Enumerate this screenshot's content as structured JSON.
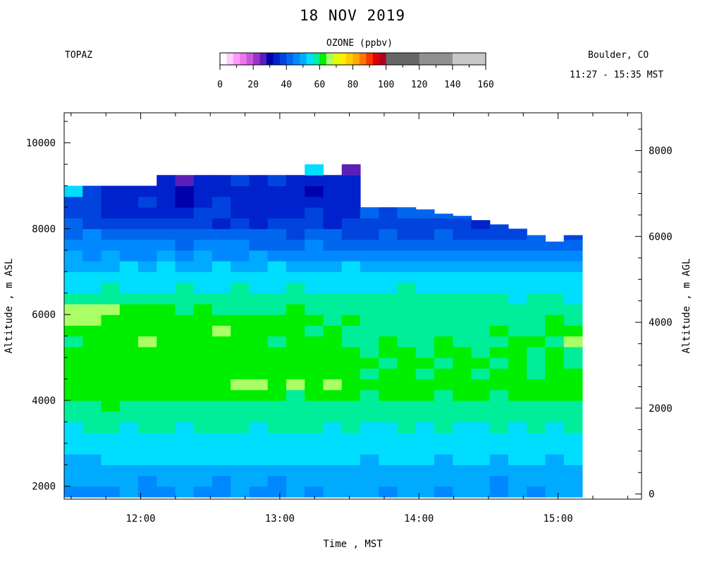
{
  "header": {
    "title": "18 NOV 2019",
    "site": "TOPAZ",
    "location": "Boulder, CO",
    "time_range": "11:27 - 15:35 MST"
  },
  "colorbar": {
    "title": "OZONE (ppbv)",
    "ticks": [
      0,
      20,
      40,
      60,
      80,
      100,
      120,
      140,
      160
    ],
    "segments": [
      {
        "from": 0,
        "to": 4,
        "color": "#ffffff"
      },
      {
        "from": 4,
        "to": 8,
        "color": "#ffccff"
      },
      {
        "from": 8,
        "to": 12,
        "color": "#ff99ff"
      },
      {
        "from": 12,
        "to": 16,
        "color": "#ee77ee"
      },
      {
        "from": 16,
        "to": 20,
        "color": "#cc55dd"
      },
      {
        "from": 20,
        "to": 24,
        "color": "#9933cc"
      },
      {
        "from": 24,
        "to": 28,
        "color": "#5a1fb8"
      },
      {
        "from": 28,
        "to": 32,
        "color": "#0000aa"
      },
      {
        "from": 32,
        "to": 36,
        "color": "#0022cc"
      },
      {
        "from": 36,
        "to": 40,
        "color": "#0044dd"
      },
      {
        "from": 40,
        "to": 44,
        "color": "#0066ee"
      },
      {
        "from": 44,
        "to": 48,
        "color": "#0088ff"
      },
      {
        "from": 48,
        "to": 52,
        "color": "#00aaff"
      },
      {
        "from": 52,
        "to": 56,
        "color": "#00ddff"
      },
      {
        "from": 56,
        "to": 60,
        "color": "#00ee99"
      },
      {
        "from": 60,
        "to": 64,
        "color": "#00ee00"
      },
      {
        "from": 64,
        "to": 68,
        "color": "#aaff66"
      },
      {
        "from": 68,
        "to": 72,
        "color": "#ddff00"
      },
      {
        "from": 72,
        "to": 76,
        "color": "#ffee00"
      },
      {
        "from": 76,
        "to": 80,
        "color": "#ffcc00"
      },
      {
        "from": 80,
        "to": 84,
        "color": "#ffaa00"
      },
      {
        "from": 84,
        "to": 88,
        "color": "#ff7700"
      },
      {
        "from": 88,
        "to": 92,
        "color": "#ff3300"
      },
      {
        "from": 92,
        "to": 96,
        "color": "#dd0000"
      },
      {
        "from": 96,
        "to": 100,
        "color": "#aa0022"
      },
      {
        "from": 100,
        "to": 120,
        "color": "#666666"
      },
      {
        "from": 120,
        "to": 140,
        "color": "#909090"
      },
      {
        "from": 140,
        "to": 160,
        "color": "#c8c8c8"
      }
    ]
  },
  "chart_data": {
    "type": "heatmap",
    "title": "18 NOV 2019",
    "xlabel": "Time , MST",
    "ylabel": "Altitude , m ASL",
    "y2label": "Altitude , m AGL",
    "x_ticks": [
      {
        "value": 12,
        "label": "12:00"
      },
      {
        "value": 13,
        "label": "13:00"
      },
      {
        "value": 14,
        "label": "14:00"
      },
      {
        "value": 15,
        "label": "15:00"
      }
    ],
    "xlim": [
      11.45,
      15.6
    ],
    "y_ticks": [
      2000,
      4000,
      6000,
      8000,
      10000
    ],
    "ylim": [
      1700,
      10700
    ],
    "y2_ticks": [
      0,
      2000,
      4000,
      6000,
      8000
    ],
    "y2_offset": 1820,
    "grid": false,
    "time_start_hours": 11.45,
    "time_step_hours": 0.133,
    "alt_base_m": 1750,
    "alt_step_m": 250,
    "column_tops_m": [
      9600,
      9550,
      9650,
      9600,
      9650,
      9700,
      9750,
      9650,
      9700,
      9850,
      9800,
      9900,
      9950,
      10000,
      9950,
      10100,
      8700,
      8600,
      8600,
      8450,
      8350,
      8300,
      8200,
      8100,
      8000,
      7850,
      7700,
      7850
    ],
    "ozone_ppbv": [
      [
        46,
        47,
        46,
        48,
        46,
        47,
        48,
        47,
        46,
        48,
        47,
        46,
        48,
        47,
        48,
        49,
        48,
        47,
        48,
        49,
        47,
        48,
        49,
        47,
        48,
        47,
        49,
        48
      ],
      [
        48,
        50,
        49,
        48,
        47,
        49,
        50,
        48,
        47,
        49,
        48,
        47,
        50,
        49,
        48,
        50,
        49,
        48,
        50,
        49,
        48,
        49,
        48,
        47,
        49,
        50,
        48,
        49
      ],
      [
        49,
        50,
        49,
        50,
        49,
        50,
        50,
        50,
        49,
        50,
        49,
        50,
        50,
        50,
        49,
        50,
        50,
        49,
        50,
        50,
        49,
        50,
        50,
        49,
        50,
        50,
        49,
        50
      ],
      [
        50,
        51,
        53,
        52,
        54,
        53,
        52,
        53,
        52,
        54,
        53,
        52,
        53,
        52,
        52,
        53,
        51,
        52,
        53,
        52,
        51,
        53,
        52,
        51,
        53,
        52,
        51,
        52
      ],
      [
        52,
        53,
        54,
        53,
        55,
        54,
        53,
        54,
        53,
        54,
        53,
        53,
        54,
        53,
        53,
        54,
        52,
        53,
        54,
        53,
        52,
        54,
        53,
        52,
        54,
        53,
        52,
        54
      ],
      [
        53,
        54,
        55,
        54,
        54,
        55,
        54,
        55,
        55,
        54,
        54,
        55,
        54,
        53,
        55,
        54,
        53,
        55,
        54,
        53,
        54,
        53,
        55,
        54,
        53,
        54,
        55,
        54
      ],
      [
        54,
        56,
        57,
        55,
        56,
        57,
        55,
        56,
        57,
        56,
        55,
        56,
        57,
        56,
        55,
        56,
        54,
        55,
        56,
        55,
        57,
        54,
        55,
        56,
        55,
        58,
        54,
        56
      ],
      [
        57,
        58,
        58,
        58,
        57,
        58,
        58,
        58,
        57,
        58,
        57,
        58,
        58,
        57,
        58,
        58,
        57,
        58,
        57,
        58,
        58,
        57,
        58,
        58,
        57,
        58,
        58,
        57
      ],
      [
        58,
        59,
        61,
        58,
        59,
        58,
        59,
        58,
        59,
        58,
        59,
        58,
        59,
        58,
        58,
        59,
        58,
        59,
        58,
        57,
        58,
        59,
        58,
        57,
        59,
        58,
        59,
        58
      ],
      [
        61,
        60,
        61,
        60,
        61,
        60,
        61,
        60,
        62,
        61,
        60,
        61,
        59,
        61,
        60,
        61,
        59,
        60,
        61,
        60,
        59,
        61,
        60,
        59,
        60,
        61,
        60,
        61
      ],
      [
        60,
        61,
        62,
        61,
        62,
        61,
        60,
        61,
        62,
        65,
        65,
        61,
        65,
        63,
        64,
        61,
        60,
        62,
        60,
        61,
        62,
        60,
        61,
        60,
        62,
        60,
        61,
        60
      ],
      [
        61,
        60,
        61,
        60,
        61,
        60,
        62,
        61,
        61,
        60,
        61,
        60,
        61,
        62,
        60,
        61,
        59,
        60,
        61,
        59,
        60,
        61,
        59,
        60,
        61,
        59,
        60,
        61
      ],
      [
        62,
        61,
        61,
        62,
        61,
        62,
        61,
        62,
        61,
        62,
        62,
        61,
        61,
        62,
        60,
        61,
        60,
        59,
        61,
        60,
        59,
        61,
        60,
        59,
        61,
        59,
        60,
        59
      ],
      [
        60,
        61,
        62,
        61,
        62,
        61,
        62,
        61,
        60,
        61,
        62,
        61,
        61,
        60,
        61,
        60,
        59,
        61,
        60,
        59,
        61,
        60,
        59,
        61,
        60,
        59,
        60,
        59
      ],
      [
        59,
        60,
        61,
        60,
        65,
        61,
        60,
        61,
        60,
        61,
        60,
        59,
        60,
        61,
        60,
        59,
        58,
        60,
        59,
        58,
        60,
        59,
        58,
        59,
        60,
        61,
        58,
        64
      ],
      [
        60,
        61,
        60,
        62,
        61,
        60,
        61,
        62,
        65,
        61,
        60,
        61,
        60,
        59,
        60,
        59,
        58,
        59,
        58,
        59,
        58,
        59,
        58,
        61,
        59,
        58,
        61,
        60
      ],
      [
        64,
        65,
        60,
        61,
        61,
        60,
        61,
        60,
        61,
        60,
        61,
        60,
        60,
        61,
        59,
        60,
        58,
        59,
        58,
        58,
        59,
        58,
        59,
        58,
        59,
        58,
        60,
        59
      ],
      [
        66,
        65,
        66,
        61,
        60,
        61,
        59,
        60,
        58,
        59,
        58,
        59,
        60,
        58,
        59,
        58,
        58,
        57,
        58,
        58,
        58,
        57,
        58,
        57,
        58,
        58,
        57,
        58
      ],
      [
        57,
        58,
        58,
        59,
        58,
        57,
        58,
        57,
        58,
        57,
        58,
        56,
        57,
        58,
        57,
        56,
        57,
        56,
        57,
        56,
        57,
        56,
        57,
        56,
        55,
        57,
        56,
        55
      ],
      [
        55,
        54,
        56,
        55,
        54,
        55,
        56,
        54,
        55,
        56,
        55,
        54,
        56,
        55,
        54,
        55,
        54,
        55,
        56,
        55,
        54,
        55,
        54,
        55,
        54,
        55,
        54,
        55
      ],
      [
        54,
        53,
        54,
        53,
        54,
        53,
        54,
        53,
        54,
        53,
        54,
        53,
        52,
        53,
        54,
        53,
        52,
        53,
        52,
        53,
        52,
        53,
        52,
        53,
        52,
        53,
        52,
        53
      ],
      [
        50,
        51,
        50,
        52,
        51,
        52,
        50,
        51,
        52,
        51,
        50,
        52,
        51,
        50,
        51,
        52,
        50,
        51,
        50,
        51,
        50,
        51,
        50,
        51,
        50,
        51,
        50,
        51
      ],
      [
        48,
        47,
        48,
        47,
        46,
        48,
        47,
        48,
        46,
        47,
        48,
        46,
        47,
        46,
        47,
        47,
        46,
        47,
        46,
        45,
        47,
        46,
        45,
        46,
        47,
        45,
        46,
        44
      ],
      [
        45,
        44,
        45,
        44,
        45,
        44,
        43,
        44,
        45,
        44,
        43,
        42,
        43,
        44,
        42,
        43,
        43,
        42,
        41,
        42,
        43,
        41,
        42,
        41,
        42,
        41,
        42,
        43
      ],
      [
        43,
        44,
        42,
        43,
        42,
        41,
        42,
        40,
        41,
        42,
        41,
        40,
        39,
        41,
        40,
        39,
        39,
        40,
        38,
        39,
        40,
        38,
        39,
        38,
        39,
        40,
        38,
        37
      ],
      [
        40,
        39,
        38,
        36,
        39,
        38,
        39,
        37,
        34,
        36,
        35,
        36,
        37,
        38,
        35,
        36,
        36,
        37,
        38,
        36,
        37,
        36,
        35,
        37,
        36,
        34,
        35,
        36
      ],
      [
        38,
        36,
        35,
        34,
        35,
        33,
        32,
        36,
        37,
        35,
        33,
        35,
        34,
        36,
        33,
        34,
        40,
        39,
        41,
        40,
        41,
        42,
        38,
        40,
        38,
        39,
        36,
        37
      ],
      [
        37,
        36,
        35,
        34,
        36,
        33,
        31,
        35,
        36,
        34,
        34,
        33,
        34,
        35,
        34,
        33,
        null,
        null,
        null,
        null,
        null,
        null,
        null,
        null,
        null,
        null,
        null,
        null
      ],
      [
        52,
        36,
        35,
        34,
        35,
        33,
        30,
        33,
        34,
        35,
        32,
        33,
        34,
        31,
        34,
        35,
        null,
        null,
        null,
        null,
        null,
        null,
        null,
        null,
        null,
        null,
        null,
        null
      ],
      [
        null,
        null,
        null,
        null,
        null,
        34,
        24,
        35,
        34,
        36,
        35,
        36,
        34,
        33,
        35,
        34,
        null,
        null,
        null,
        null,
        null,
        null,
        null,
        null,
        null,
        null,
        null,
        null
      ],
      [
        null,
        null,
        null,
        null,
        null,
        null,
        null,
        null,
        null,
        null,
        null,
        null,
        null,
        52,
        null,
        26,
        null,
        null,
        null,
        null,
        null,
        null,
        null,
        null,
        null,
        null,
        null,
        null
      ]
    ]
  }
}
